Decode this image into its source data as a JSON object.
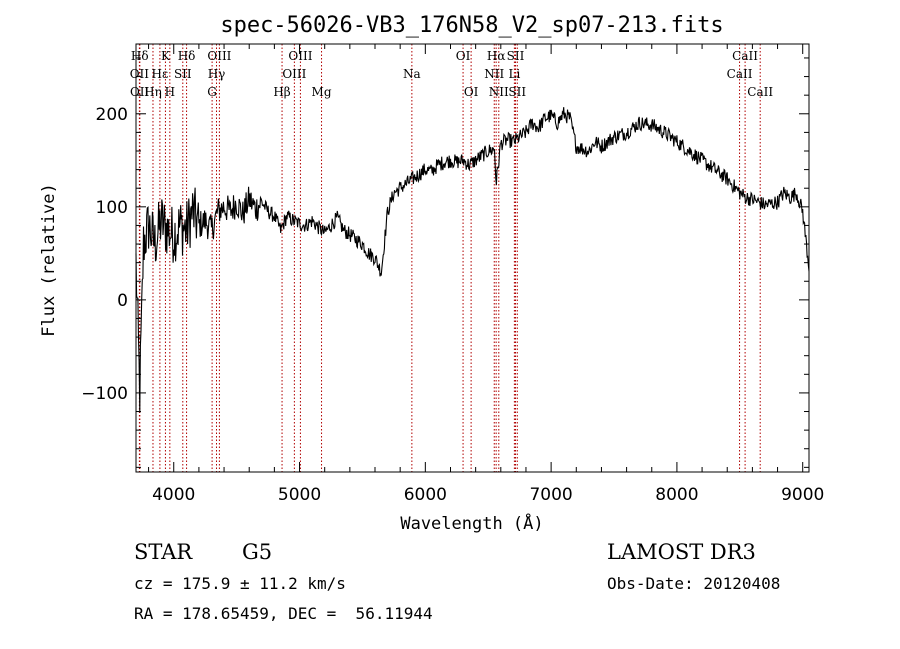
{
  "chart_data": {
    "type": "line",
    "title": "spec-56026-VB3_176N58_V2_sp07-213.fits",
    "xlabel": "Wavelength (Å)",
    "ylabel": "Flux (relative)",
    "xlim": [
      3700,
      9050
    ],
    "ylim": [
      -185,
      275
    ],
    "x_ticks": [
      4000,
      5000,
      6000,
      7000,
      8000,
      9000
    ],
    "y_ticks": [
      -100,
      0,
      100,
      200
    ],
    "x_minor_step": 200,
    "y_minor_step": 20,
    "grid": false,
    "line_color": "#000000",
    "marker_color": "#b00000",
    "spectrum_anchors": [
      [
        3700,
        40
      ],
      [
        3730,
        -100
      ],
      [
        3760,
        60
      ],
      [
        3800,
        80
      ],
      [
        3850,
        60
      ],
      [
        3900,
        85
      ],
      [
        3950,
        75
      ],
      [
        4000,
        70
      ],
      [
        4050,
        80
      ],
      [
        4100,
        75
      ],
      [
        4150,
        95
      ],
      [
        4200,
        80
      ],
      [
        4250,
        85
      ],
      [
        4300,
        75
      ],
      [
        4350,
        95
      ],
      [
        4400,
        100
      ],
      [
        4450,
        95
      ],
      [
        4500,
        105
      ],
      [
        4550,
        92
      ],
      [
        4600,
        108
      ],
      [
        4650,
        98
      ],
      [
        4700,
        105
      ],
      [
        4750,
        95
      ],
      [
        4800,
        90
      ],
      [
        4850,
        75
      ],
      [
        4900,
        90
      ],
      [
        4950,
        85
      ],
      [
        5000,
        82
      ],
      [
        5050,
        80
      ],
      [
        5100,
        85
      ],
      [
        5150,
        78
      ],
      [
        5200,
        72
      ],
      [
        5250,
        80
      ],
      [
        5300,
        88
      ],
      [
        5350,
        75
      ],
      [
        5400,
        70
      ],
      [
        5450,
        65
      ],
      [
        5500,
        60
      ],
      [
        5550,
        50
      ],
      [
        5600,
        45
      ],
      [
        5650,
        30
      ],
      [
        5700,
        95
      ],
      [
        5750,
        115
      ],
      [
        5800,
        120
      ],
      [
        5850,
        125
      ],
      [
        5900,
        130
      ],
      [
        5950,
        135
      ],
      [
        6000,
        140
      ],
      [
        6050,
        138
      ],
      [
        6100,
        145
      ],
      [
        6150,
        148
      ],
      [
        6200,
        150
      ],
      [
        6250,
        148
      ],
      [
        6300,
        150
      ],
      [
        6350,
        145
      ],
      [
        6400,
        150
      ],
      [
        6450,
        155
      ],
      [
        6500,
        160
      ],
      [
        6550,
        162
      ],
      [
        6563,
        125
      ],
      [
        6600,
        168
      ],
      [
        6650,
        172
      ],
      [
        6700,
        170
      ],
      [
        6750,
        175
      ],
      [
        6800,
        180
      ],
      [
        6850,
        190
      ],
      [
        6900,
        185
      ],
      [
        6950,
        195
      ],
      [
        7000,
        198
      ],
      [
        7050,
        190
      ],
      [
        7100,
        200
      ],
      [
        7150,
        195
      ],
      [
        7200,
        165
      ],
      [
        7300,
        160
      ],
      [
        7350,
        170
      ],
      [
        7400,
        165
      ],
      [
        7500,
        175
      ],
      [
        7600,
        180
      ],
      [
        7700,
        190
      ],
      [
        7800,
        188
      ],
      [
        7900,
        180
      ],
      [
        8000,
        170
      ],
      [
        8100,
        160
      ],
      [
        8200,
        150
      ],
      [
        8300,
        140
      ],
      [
        8400,
        130
      ],
      [
        8500,
        115
      ],
      [
        8550,
        110
      ],
      [
        8600,
        108
      ],
      [
        8700,
        102
      ],
      [
        8800,
        105
      ],
      [
        8850,
        115
      ],
      [
        8900,
        110
      ],
      [
        8950,
        115
      ],
      [
        9000,
        95
      ],
      [
        9050,
        35
      ]
    ],
    "line_markers": [
      {
        "label": "Hδ",
        "x": 3730,
        "row": 0
      },
      {
        "label": "OII",
        "x": 3727,
        "row": 1
      },
      {
        "label": "OII",
        "x": 3729,
        "row": 2
      },
      {
        "label": "K",
        "x": 3934,
        "row": 0
      },
      {
        "label": "Hε",
        "x": 3890,
        "row": 1
      },
      {
        "label": "Hη",
        "x": 3835,
        "row": 2
      },
      {
        "label": "SII",
        "x": 4072,
        "row": 1
      },
      {
        "label": "H",
        "x": 3969,
        "row": 2
      },
      {
        "label": "Hδ",
        "x": 4102,
        "row": 0
      },
      {
        "label": "OIII",
        "x": 4363,
        "row": 0
      },
      {
        "label": "Hγ",
        "x": 4340,
        "row": 1
      },
      {
        "label": "G",
        "x": 4305,
        "row": 2
      },
      {
        "label": "Hβ",
        "x": 4861,
        "row": 2
      },
      {
        "label": "OIII",
        "x": 5007,
        "row": 0
      },
      {
        "label": "OIII",
        "x": 4959,
        "row": 1
      },
      {
        "label": "Mg",
        "x": 5175,
        "row": 2
      },
      {
        "label": "Na",
        "x": 5893,
        "row": 1
      },
      {
        "label": "OI",
        "x": 6300,
        "row": 0
      },
      {
        "label": "OI",
        "x": 6364,
        "row": 2
      },
      {
        "label": "Hα",
        "x": 6563,
        "row": 0
      },
      {
        "label": "NII",
        "x": 6548,
        "row": 1
      },
      {
        "label": "NII",
        "x": 6584,
        "row": 2
      },
      {
        "label": "SII",
        "x": 6717,
        "row": 0
      },
      {
        "label": "Li",
        "x": 6708,
        "row": 1
      },
      {
        "label": "SII",
        "x": 6731,
        "row": 2
      },
      {
        "label": "CaII",
        "x": 8542,
        "row": 0
      },
      {
        "label": "CaII",
        "x": 8498,
        "row": 1
      },
      {
        "label": "CaII",
        "x": 8662,
        "row": 2
      }
    ]
  },
  "info": {
    "object_class": "STAR",
    "subclass": "G5",
    "survey": "LAMOST DR3",
    "cz": "cz = 175.9 ± 11.2 km/s",
    "obs_date": "Obs-Date: 20120408",
    "coords": "RA = 178.65459, DEC =  56.11944"
  }
}
